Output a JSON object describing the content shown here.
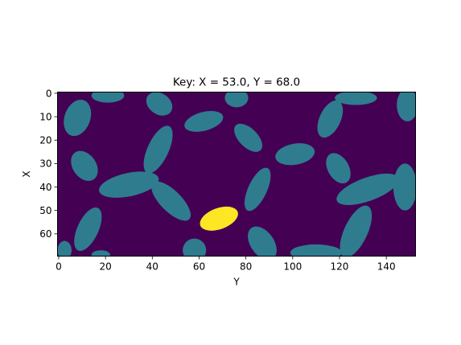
{
  "chart_data": {
    "type": "heatmap",
    "title": "Key: X = 53.0, Y = 68.0",
    "xlabel": "Y",
    "ylabel": "X",
    "xlim": [
      0,
      153
    ],
    "ylim": [
      0,
      70
    ],
    "x_ticks": [
      0,
      20,
      40,
      60,
      80,
      100,
      120,
      140
    ],
    "y_ticks": [
      0,
      10,
      20,
      30,
      40,
      50,
      60
    ],
    "colors": {
      "background": "#440154",
      "regions": "#2f7c8e",
      "key": "#fde725"
    },
    "key_point": {
      "x": 53,
      "y": 68
    },
    "regions": [
      {
        "shape": "ellipse",
        "col": 8,
        "row": 10.5,
        "rx": 5.5,
        "ry": 8,
        "angle": 20
      },
      {
        "shape": "ellipse",
        "col": 21,
        "row": 1,
        "rx": 7,
        "ry": 3,
        "angle": 0
      },
      {
        "shape": "ellipse",
        "col": 43,
        "row": 4.5,
        "rx": 6,
        "ry": 4.5,
        "angle": 35
      },
      {
        "shape": "ellipse",
        "col": 62,
        "row": 12,
        "rx": 8.5,
        "ry": 4,
        "angle": -15
      },
      {
        "shape": "ellipse",
        "col": 76,
        "row": 2,
        "rx": 5,
        "ry": 4,
        "angle": 0
      },
      {
        "shape": "ellipse",
        "col": 81,
        "row": 19,
        "rx": 7.5,
        "ry": 4,
        "angle": 45
      },
      {
        "shape": "ellipse",
        "col": 101,
        "row": 26,
        "rx": 8.5,
        "ry": 4.5,
        "angle": -10
      },
      {
        "shape": "ellipse",
        "col": 116,
        "row": 11,
        "rx": 4.5,
        "ry": 8.5,
        "angle": 25
      },
      {
        "shape": "ellipse",
        "col": 127,
        "row": 2,
        "rx": 9,
        "ry": 3,
        "angle": 0
      },
      {
        "shape": "ellipse",
        "col": 149,
        "row": 5,
        "rx": 4.5,
        "ry": 7,
        "angle": 0
      },
      {
        "shape": "ellipse",
        "col": 11,
        "row": 31,
        "rx": 5,
        "ry": 7,
        "angle": -35
      },
      {
        "shape": "ellipse",
        "col": 42.5,
        "row": 24,
        "rx": 4.5,
        "ry": 11,
        "angle": 25
      },
      {
        "shape": "ellipse",
        "col": 30,
        "row": 39,
        "rx": 13,
        "ry": 5,
        "angle": -12
      },
      {
        "shape": "ellipse",
        "col": 48,
        "row": 46,
        "rx": 11,
        "ry": 4.5,
        "angle": 45
      },
      {
        "shape": "ellipse",
        "col": 85,
        "row": 41,
        "rx": 4,
        "ry": 10,
        "angle": 25
      },
      {
        "shape": "ellipse",
        "col": 119.5,
        "row": 32,
        "rx": 4.5,
        "ry": 7,
        "angle": -30
      },
      {
        "shape": "ellipse",
        "col": 132,
        "row": 41,
        "rx": 14,
        "ry": 5,
        "angle": -20
      },
      {
        "shape": "ellipse",
        "col": 148,
        "row": 40,
        "rx": 5,
        "ry": 10,
        "angle": 0
      },
      {
        "shape": "ellipse",
        "col": 12.5,
        "row": 58,
        "rx": 4.5,
        "ry": 10,
        "angle": 25
      },
      {
        "shape": "ellipse",
        "col": 87,
        "row": 64,
        "rx": 5,
        "ry": 8,
        "angle": -35
      },
      {
        "shape": "ellipse",
        "col": 127,
        "row": 59,
        "rx": 5,
        "ry": 12,
        "angle": 25
      },
      {
        "shape": "ellipse",
        "col": 110,
        "row": 68,
        "rx": 11,
        "ry": 3.5,
        "angle": 0
      },
      {
        "shape": "ellipse",
        "col": 58,
        "row": 67,
        "rx": 5,
        "ry": 5,
        "angle": 0
      },
      {
        "shape": "ellipse",
        "col": 2.5,
        "row": 67,
        "rx": 3,
        "ry": 4,
        "angle": 0
      },
      {
        "shape": "ellipse",
        "col": 18,
        "row": 69,
        "rx": 4,
        "ry": 2,
        "angle": 0
      }
    ],
    "key_region": {
      "shape": "ellipse",
      "col": 68.5,
      "row": 53.5,
      "rx": 8.5,
      "ry": 4.5,
      "angle": -20
    }
  }
}
